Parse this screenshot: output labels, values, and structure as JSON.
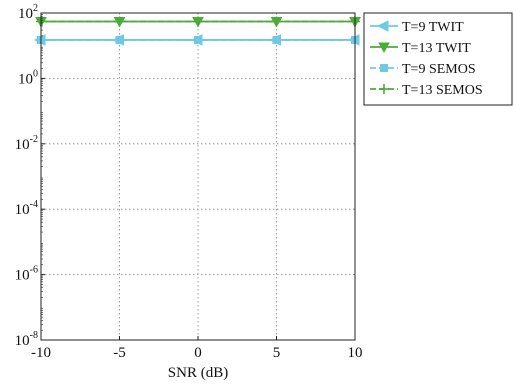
{
  "chart_data": {
    "type": "line",
    "title": "",
    "xlabel": "SNR (dB)",
    "ylabel": "",
    "x": [
      -10,
      -5,
      0,
      5,
      10
    ],
    "xlim": [
      -10,
      10
    ],
    "ylim": [
      1e-08,
      100
    ],
    "yscale": "log",
    "xticks": [
      "-10",
      "-5",
      "0",
      "5",
      "10"
    ],
    "yticks": [
      {
        "base": "10",
        "exp": "-8",
        "value": 1e-08
      },
      {
        "base": "10",
        "exp": "-6",
        "value": 1e-06
      },
      {
        "base": "10",
        "exp": "-4",
        "value": 0.0001
      },
      {
        "base": "10",
        "exp": "-2",
        "value": 0.01
      },
      {
        "base": "10",
        "exp": "0",
        "value": 1
      },
      {
        "base": "10",
        "exp": "2",
        "value": 100
      }
    ],
    "grid": true,
    "legend_position": "outside-top-right",
    "series": [
      {
        "name": "T=9 TWIT",
        "values": [
          15,
          15,
          15,
          15,
          15
        ],
        "color": "#6ec9e6",
        "linestyle": "solid",
        "marker": "triangle-left"
      },
      {
        "name": "T=13 TWIT",
        "values": [
          55,
          55,
          55,
          55,
          55
        ],
        "color": "#4daa3a",
        "linestyle": "solid",
        "marker": "triangle-down"
      },
      {
        "name": "T=9 SEMOS",
        "values": [
          15,
          15,
          15,
          15,
          15
        ],
        "color": "#6ec9e6",
        "linestyle": "dashed",
        "marker": "square"
      },
      {
        "name": "T=13 SEMOS",
        "values": [
          55,
          55,
          55,
          55,
          55
        ],
        "color": "#4daa3a",
        "linestyle": "dashed",
        "marker": "plus"
      }
    ]
  }
}
